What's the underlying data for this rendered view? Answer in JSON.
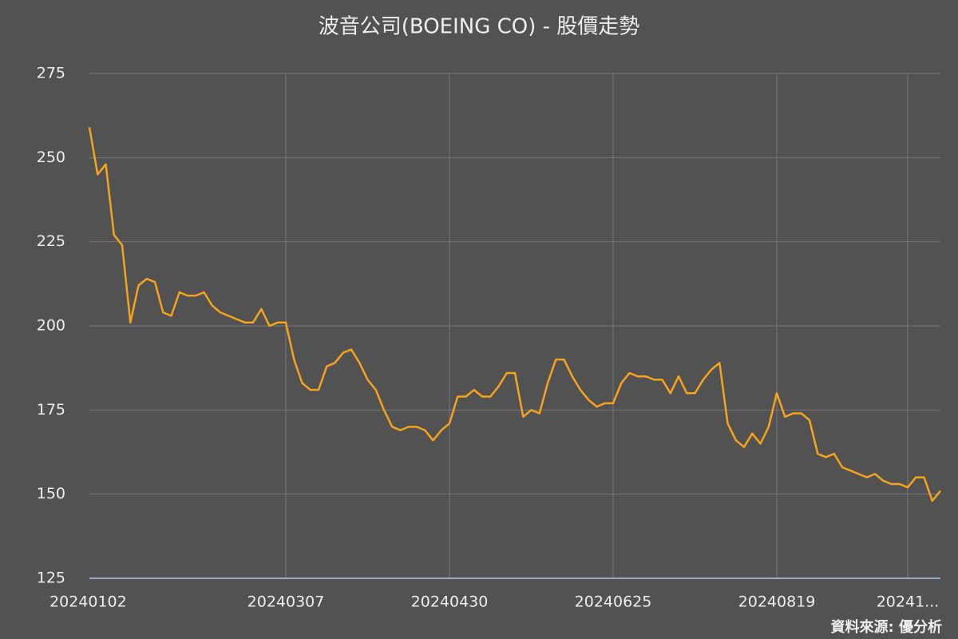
{
  "chart_data": {
    "type": "line",
    "title": "波音公司(BOEING CO) - 股價走勢",
    "source": "資料來源: 優分析",
    "categories": [
      "20240102",
      null,
      null,
      null,
      null,
      null,
      null,
      null,
      null,
      null,
      null,
      null,
      null,
      null,
      null,
      null,
      null,
      null,
      null,
      null,
      null,
      null,
      null,
      null,
      "20240307",
      null,
      null,
      null,
      null,
      null,
      null,
      null,
      null,
      null,
      null,
      null,
      null,
      null,
      null,
      null,
      null,
      null,
      null,
      null,
      "20240430",
      null,
      null,
      null,
      null,
      null,
      null,
      null,
      null,
      null,
      null,
      null,
      null,
      null,
      null,
      null,
      null,
      null,
      null,
      null,
      "20240625",
      null,
      null,
      null,
      null,
      null,
      null,
      null,
      null,
      null,
      null,
      null,
      null,
      null,
      null,
      null,
      null,
      null,
      null,
      null,
      "20240819",
      null,
      null,
      null,
      null,
      null,
      null,
      null,
      null,
      null,
      null,
      null,
      null,
      null,
      null,
      null,
      "20241...",
      null,
      null,
      null,
      null
    ],
    "values": [
      259,
      245,
      248,
      227,
      224,
      201,
      212,
      214,
      213,
      204,
      203,
      210,
      209,
      209,
      210,
      206,
      204,
      203,
      202,
      201,
      201,
      205,
      200,
      201,
      201,
      190,
      183,
      181,
      181,
      188,
      189,
      192,
      193,
      189,
      184,
      181,
      175,
      170,
      169,
      170,
      170,
      169,
      166,
      169,
      171,
      179,
      179,
      181,
      179,
      179,
      182,
      186,
      186,
      173,
      175,
      174,
      183,
      190,
      190,
      185,
      181,
      178,
      176,
      177,
      177,
      183,
      186,
      185,
      185,
      184,
      184,
      180,
      185,
      180,
      180,
      184,
      187,
      189,
      171,
      166,
      164,
      168,
      165,
      170,
      180,
      173,
      174,
      174,
      172,
      162,
      161,
      162,
      158,
      157,
      156,
      155,
      156,
      154,
      153,
      153,
      152,
      155,
      155,
      148,
      151
    ],
    "color": "#f5a41b",
    "ylim": [
      125,
      275
    ],
    "yticks": [
      125,
      150,
      175,
      200,
      225,
      250,
      275
    ],
    "grid": true
  }
}
